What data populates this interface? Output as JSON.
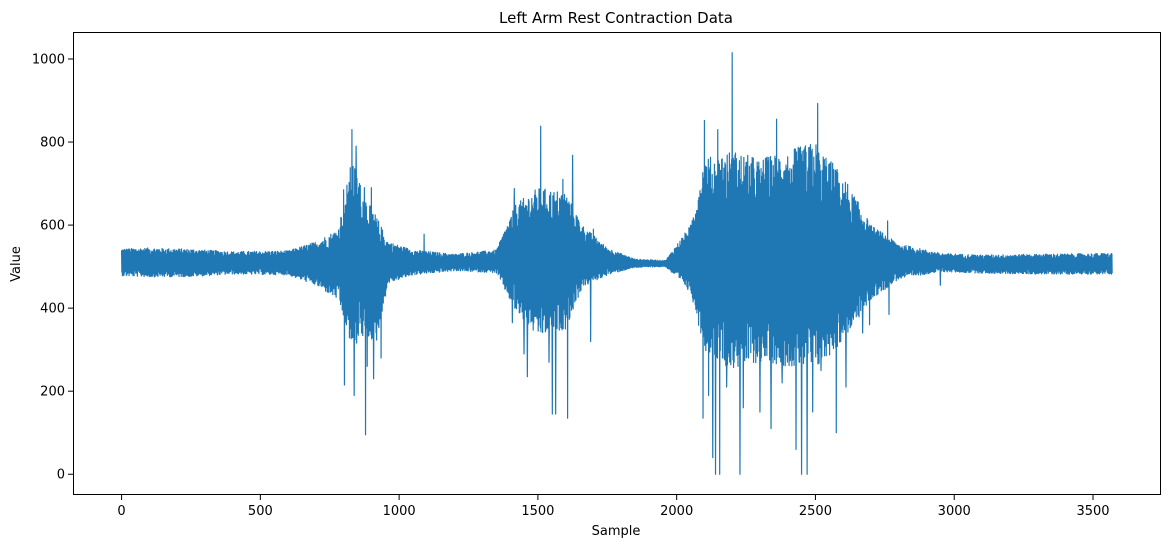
{
  "chart_data": {
    "type": "line",
    "title": "Left Arm Rest Contraction Data",
    "xlabel": "Sample",
    "ylabel": "Value",
    "xlim": [
      -175,
      3745
    ],
    "ylim": [
      -50,
      1065
    ],
    "xticks": [
      0,
      500,
      1000,
      1500,
      2000,
      2500,
      3000,
      3500
    ],
    "yticks": [
      0,
      200,
      400,
      600,
      800,
      1000
    ],
    "grid": false,
    "legend": "none",
    "line_color": "#1f77b4",
    "n_samples": 3570,
    "baseline": 510,
    "envelope": [
      {
        "x": 0,
        "low": 478,
        "high": 543
      },
      {
        "x": 100,
        "low": 475,
        "high": 545
      },
      {
        "x": 250,
        "low": 476,
        "high": 542
      },
      {
        "x": 400,
        "low": 482,
        "high": 536
      },
      {
        "x": 600,
        "low": 480,
        "high": 538
      },
      {
        "x": 700,
        "low": 455,
        "high": 560
      },
      {
        "x": 780,
        "low": 420,
        "high": 590
      },
      {
        "x": 830,
        "low": 300,
        "high": 760
      },
      {
        "x": 870,
        "low": 330,
        "high": 680
      },
      {
        "x": 920,
        "low": 320,
        "high": 620
      },
      {
        "x": 960,
        "low": 460,
        "high": 560
      },
      {
        "x": 1050,
        "low": 480,
        "high": 540
      },
      {
        "x": 1200,
        "low": 490,
        "high": 530
      },
      {
        "x": 1350,
        "low": 485,
        "high": 540
      },
      {
        "x": 1420,
        "low": 390,
        "high": 650
      },
      {
        "x": 1500,
        "low": 330,
        "high": 690
      },
      {
        "x": 1600,
        "low": 350,
        "high": 680
      },
      {
        "x": 1660,
        "low": 450,
        "high": 600
      },
      {
        "x": 1750,
        "low": 480,
        "high": 545
      },
      {
        "x": 1850,
        "low": 498,
        "high": 518
      },
      {
        "x": 1960,
        "low": 500,
        "high": 515
      },
      {
        "x": 2050,
        "low": 440,
        "high": 600
      },
      {
        "x": 2100,
        "low": 300,
        "high": 760
      },
      {
        "x": 2200,
        "low": 250,
        "high": 780
      },
      {
        "x": 2300,
        "low": 270,
        "high": 760
      },
      {
        "x": 2400,
        "low": 260,
        "high": 780
      },
      {
        "x": 2500,
        "low": 250,
        "high": 800
      },
      {
        "x": 2600,
        "low": 320,
        "high": 720
      },
      {
        "x": 2700,
        "low": 420,
        "high": 600
      },
      {
        "x": 2800,
        "low": 470,
        "high": 555
      },
      {
        "x": 2950,
        "low": 488,
        "high": 532
      },
      {
        "x": 3100,
        "low": 484,
        "high": 528
      },
      {
        "x": 3300,
        "low": 482,
        "high": 530
      },
      {
        "x": 3570,
        "low": 482,
        "high": 532
      }
    ],
    "spikes": [
      {
        "x": 775,
        "y": 560
      },
      {
        "x": 800,
        "y": 685
      },
      {
        "x": 803,
        "y": 215
      },
      {
        "x": 810,
        "y": 360
      },
      {
        "x": 830,
        "y": 830
      },
      {
        "x": 838,
        "y": 190
      },
      {
        "x": 845,
        "y": 790
      },
      {
        "x": 857,
        "y": 700
      },
      {
        "x": 868,
        "y": 415
      },
      {
        "x": 875,
        "y": 690
      },
      {
        "x": 879,
        "y": 95
      },
      {
        "x": 885,
        "y": 260
      },
      {
        "x": 900,
        "y": 690
      },
      {
        "x": 908,
        "y": 230
      },
      {
        "x": 935,
        "y": 280
      },
      {
        "x": 1090,
        "y": 578
      },
      {
        "x": 1408,
        "y": 365
      },
      {
        "x": 1415,
        "y": 688
      },
      {
        "x": 1450,
        "y": 290
      },
      {
        "x": 1462,
        "y": 235
      },
      {
        "x": 1510,
        "y": 838
      },
      {
        "x": 1540,
        "y": 270
      },
      {
        "x": 1552,
        "y": 145
      },
      {
        "x": 1564,
        "y": 145
      },
      {
        "x": 1590,
        "y": 710
      },
      {
        "x": 1607,
        "y": 135
      },
      {
        "x": 1625,
        "y": 768
      },
      {
        "x": 1690,
        "y": 320
      },
      {
        "x": 1700,
        "y": 590
      },
      {
        "x": 2040,
        "y": 445
      },
      {
        "x": 2095,
        "y": 135
      },
      {
        "x": 2100,
        "y": 852
      },
      {
        "x": 2115,
        "y": 190
      },
      {
        "x": 2130,
        "y": 40
      },
      {
        "x": 2140,
        "y": 0
      },
      {
        "x": 2148,
        "y": 830
      },
      {
        "x": 2155,
        "y": 0
      },
      {
        "x": 2165,
        "y": 280
      },
      {
        "x": 2180,
        "y": 210
      },
      {
        "x": 2200,
        "y": 1015
      },
      {
        "x": 2215,
        "y": 760
      },
      {
        "x": 2228,
        "y": 0
      },
      {
        "x": 2240,
        "y": 160
      },
      {
        "x": 2300,
        "y": 150
      },
      {
        "x": 2320,
        "y": 760
      },
      {
        "x": 2340,
        "y": 110
      },
      {
        "x": 2360,
        "y": 855
      },
      {
        "x": 2380,
        "y": 220
      },
      {
        "x": 2410,
        "y": 280
      },
      {
        "x": 2430,
        "y": 60
      },
      {
        "x": 2450,
        "y": 0
      },
      {
        "x": 2470,
        "y": 0
      },
      {
        "x": 2490,
        "y": 150
      },
      {
        "x": 2508,
        "y": 893
      },
      {
        "x": 2520,
        "y": 250
      },
      {
        "x": 2540,
        "y": 740
      },
      {
        "x": 2560,
        "y": 370
      },
      {
        "x": 2575,
        "y": 100
      },
      {
        "x": 2590,
        "y": 580
      },
      {
        "x": 2610,
        "y": 210
      },
      {
        "x": 2630,
        "y": 360
      },
      {
        "x": 2660,
        "y": 570
      },
      {
        "x": 2670,
        "y": 340
      },
      {
        "x": 2695,
        "y": 360
      },
      {
        "x": 2760,
        "y": 610
      },
      {
        "x": 2765,
        "y": 385
      },
      {
        "x": 2950,
        "y": 455
      }
    ]
  }
}
